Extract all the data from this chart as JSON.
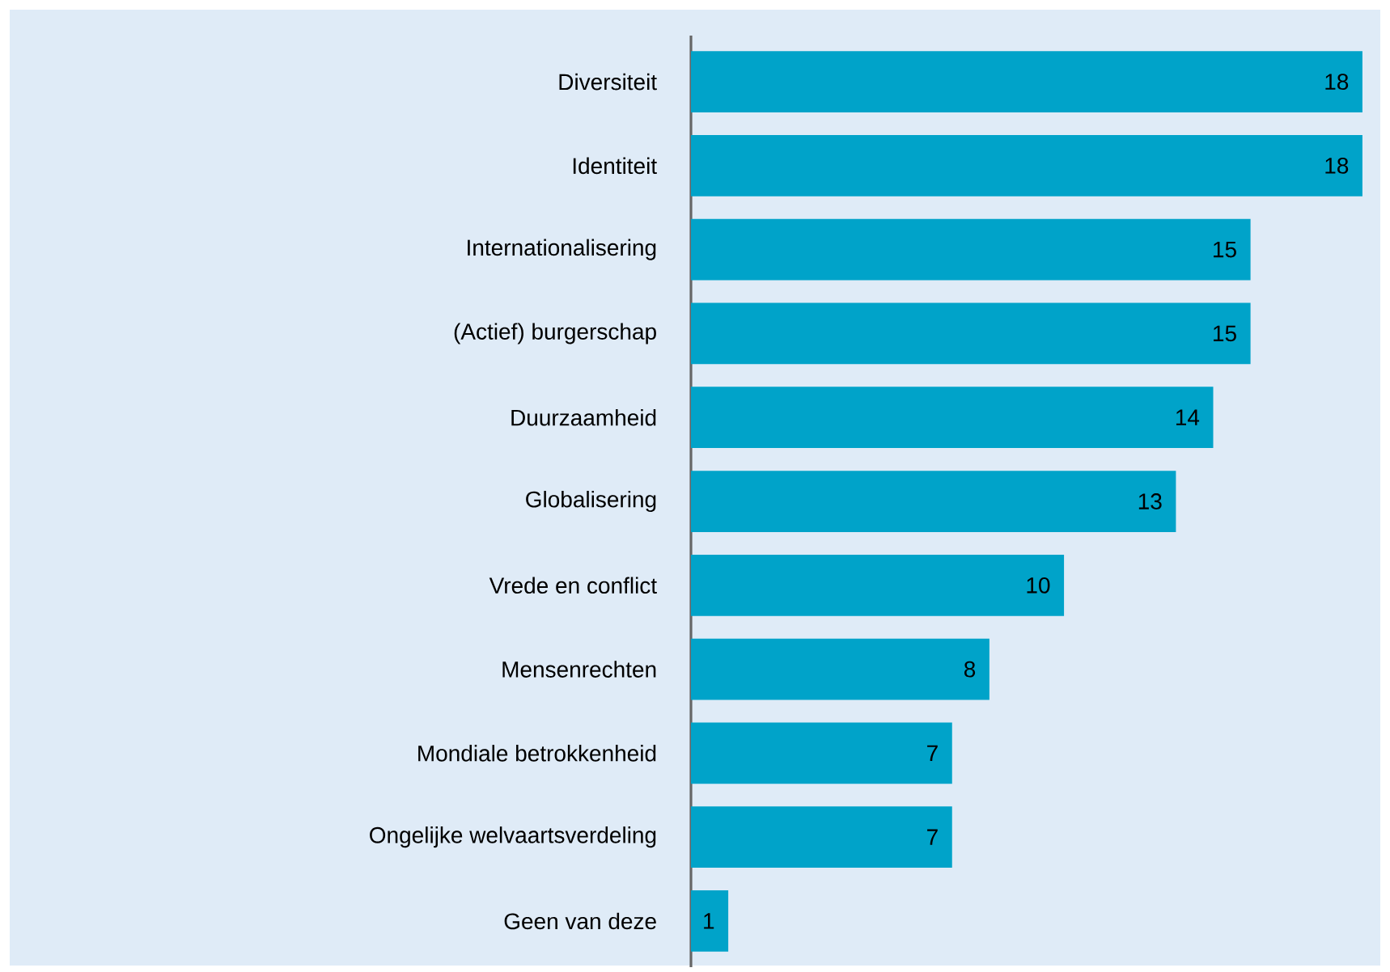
{
  "chart_data": {
    "type": "bar",
    "orientation": "horizontal",
    "categories": [
      "Diversiteit",
      "Identiteit",
      "Internationalisering",
      "(Actief) burgerschap",
      "Duurzaamheid",
      "Globalisering",
      "Vrede en conflict",
      "Mensenrechten",
      "Mondiale betrokkenheid",
      "Ongelijke welvaartsverdeling",
      "Geen van deze"
    ],
    "values": [
      18,
      18,
      15,
      15,
      14,
      13,
      10,
      8,
      7,
      7,
      1
    ],
    "color": "#00a3c9",
    "data_labels": true
  }
}
